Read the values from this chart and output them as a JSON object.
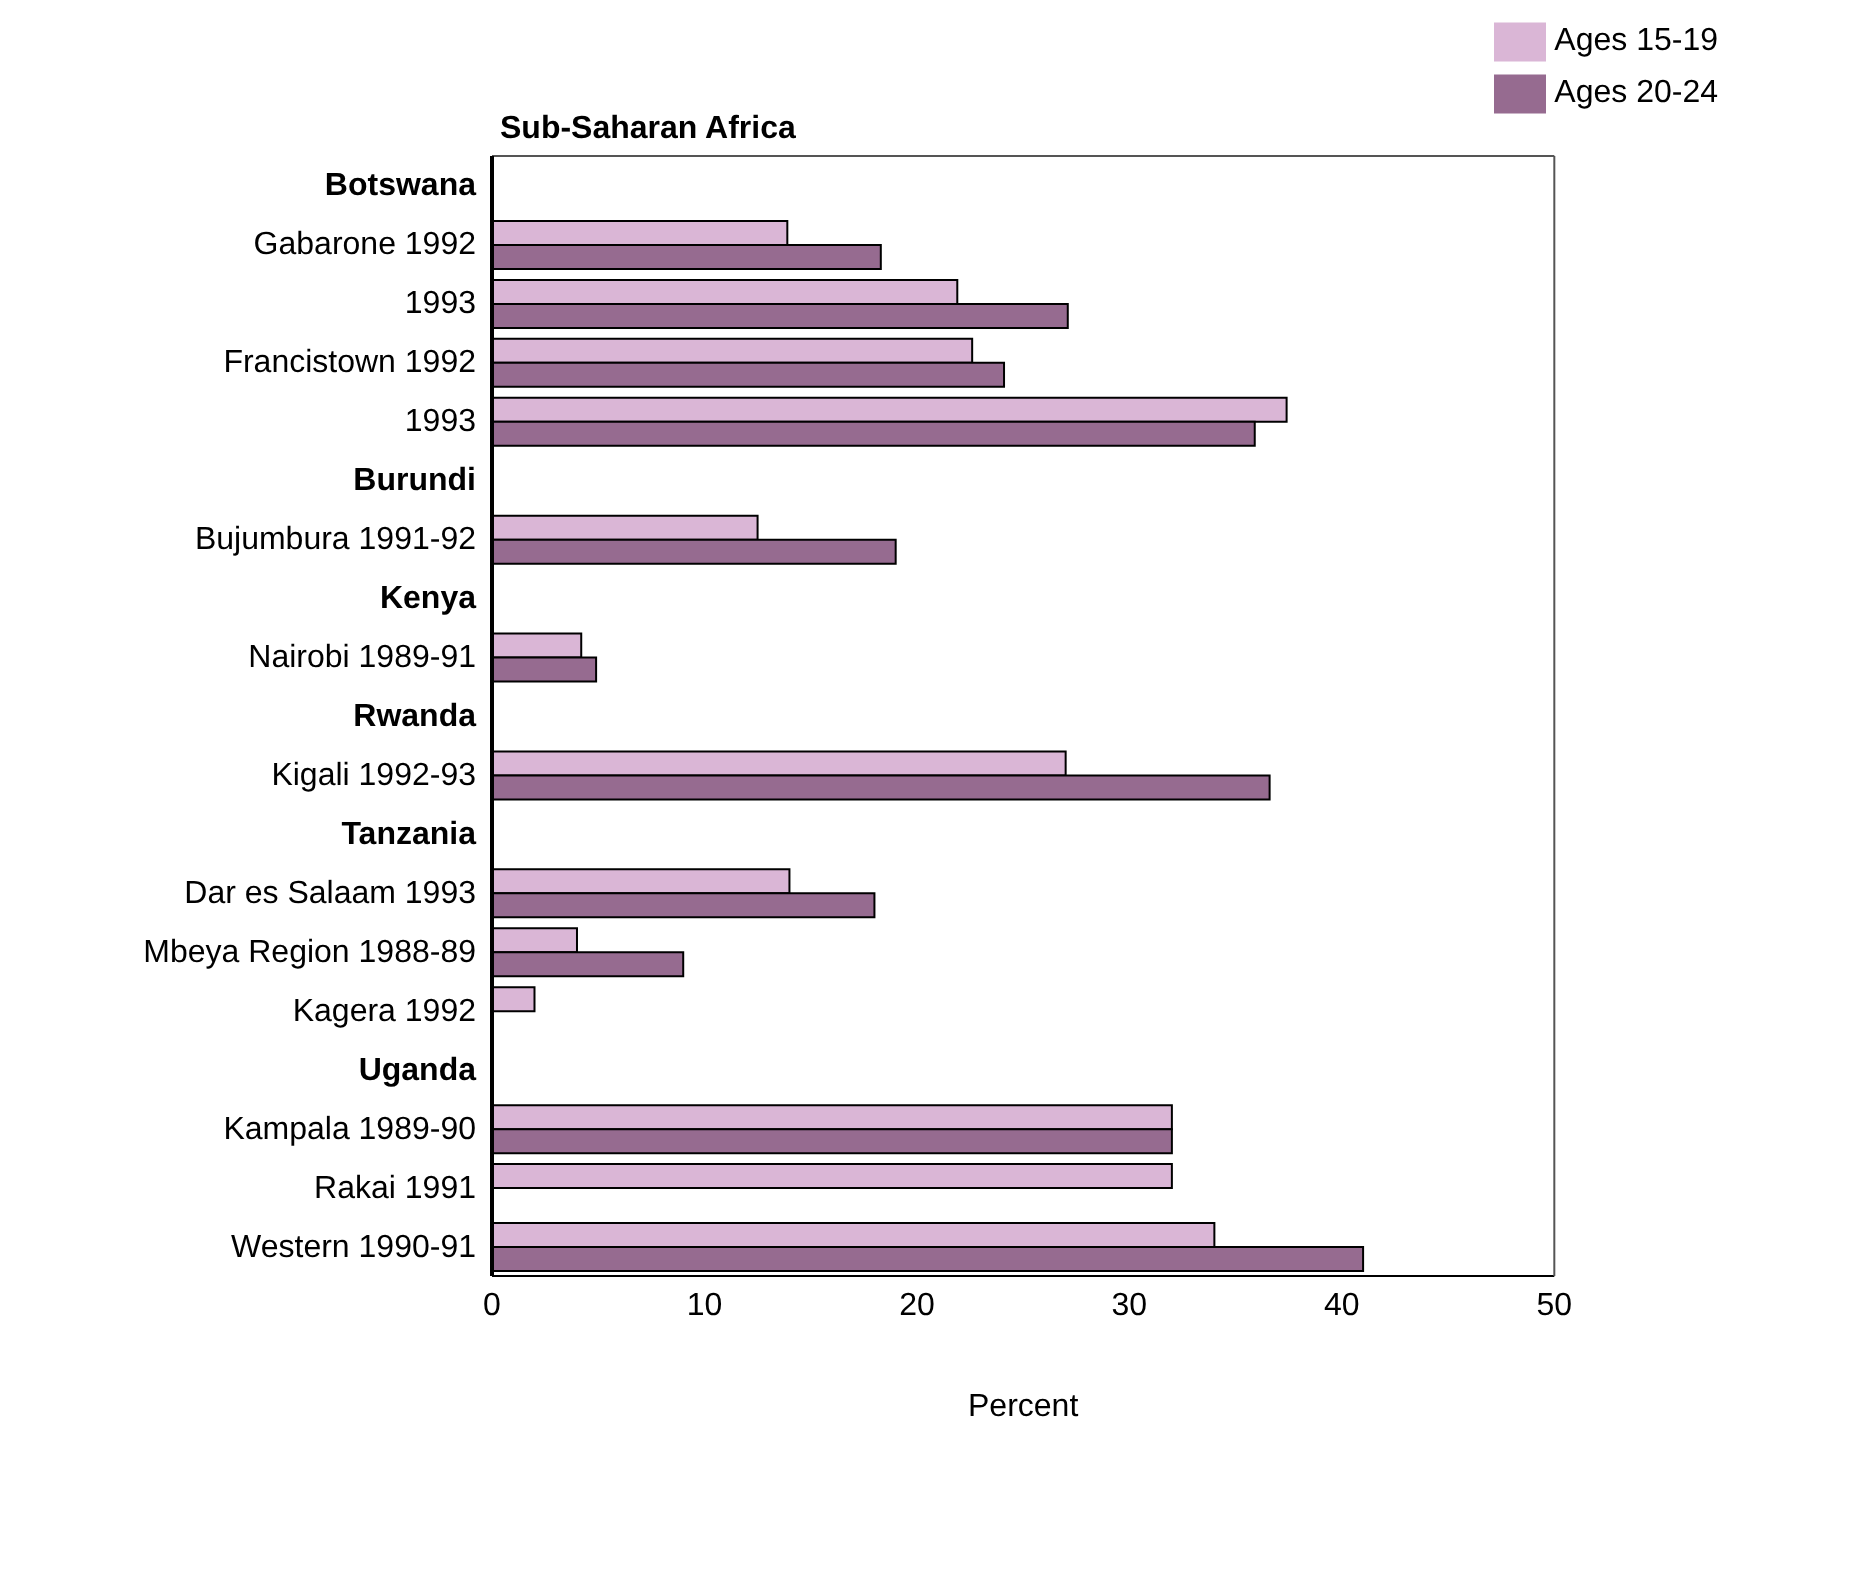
{
  "chart_data": {
    "type": "bar",
    "orientation": "horizontal",
    "title": "Sub-Saharan Africa",
    "xlabel": "Percent",
    "categories": [
      "Botswana",
      "Gabarone 1992",
      "1993",
      "Francistown 1992",
      "1993",
      "Burundi",
      "Bujumbura 1991-92",
      "Kenya",
      "Nairobi 1989-91",
      "Rwanda",
      "Kigali 1992-93",
      "Tanzania",
      "Dar es Salaam 1993",
      "Mbeya Region 1988-89",
      "Kagera 1992",
      "Uganda",
      "Kampala 1989-90",
      "Rakai 1991",
      "Western 1990-91"
    ],
    "series": [
      {
        "name": "Ages 15-19",
        "color": "#dab6d6",
        "values": [
          null,
          13.9,
          21.9,
          22.6,
          37.4,
          null,
          12.5,
          null,
          4.2,
          null,
          27.0,
          null,
          14.0,
          4.0,
          2.0,
          null,
          32.0,
          32.0,
          34.0
        ]
      },
      {
        "name": "Ages 20-24",
        "color": "#966b90",
        "values": [
          null,
          18.3,
          27.1,
          24.1,
          35.9,
          null,
          19.0,
          null,
          4.9,
          null,
          36.6,
          null,
          18.0,
          9.0,
          null,
          null,
          32.0,
          null,
          41.0
        ]
      }
    ],
    "xlim": [
      0,
      50
    ],
    "xticks": [
      0,
      10,
      20,
      30,
      40,
      50
    ],
    "legend": "top right"
  }
}
